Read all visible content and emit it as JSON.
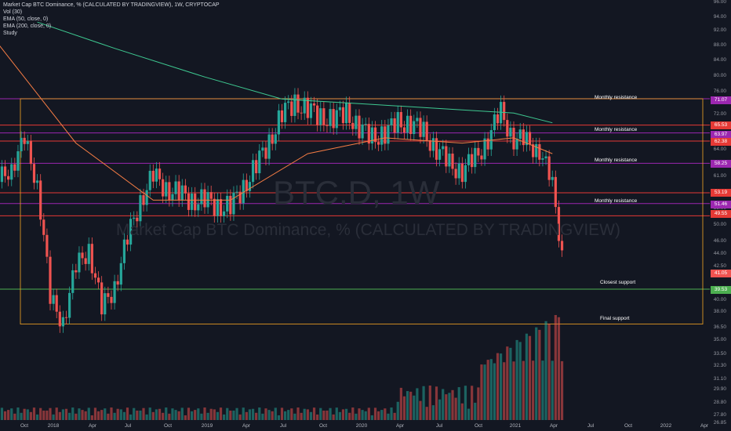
{
  "header": {
    "title": "Market Cap BTC Dominance, % (CALCULATED BY TRADINGVIEW), 1W, CRYPTOCAP",
    "studies": [
      "Vol (30)",
      "EMA (50, close, 0)",
      "EMA (200, close, 0)",
      "Study"
    ]
  },
  "watermark": {
    "symbol": "BTC.D, 1W",
    "name": "Market Cap BTC Dominance, % (CALCULATED BY TRADINGVIEW)"
  },
  "colors": {
    "background": "#131722",
    "up": "#26a69a",
    "down": "#ef5350",
    "ema50": "#f57c44",
    "ema200": "#3ec991",
    "resistance_purple": "#9c27b0",
    "resistance_red": "#e53935",
    "support_green": "#4caf50",
    "box": "#f5a623"
  },
  "zones": [
    {
      "label": "Monthly resistance",
      "level": 71.07,
      "color": "purple"
    },
    {
      "label": "",
      "level": 65.53,
      "color": "red"
    },
    {
      "label": "Monthly resistance",
      "level": 63.97,
      "color": "purple"
    },
    {
      "label": "",
      "level": 62.38,
      "color": "red"
    },
    {
      "label": "Monthly resistance",
      "level": 58.25,
      "color": "purple"
    },
    {
      "label": "",
      "level": 53.19,
      "color": "red"
    },
    {
      "label": "Monthly resistance",
      "level": 51.46,
      "color": "purple"
    },
    {
      "label": "",
      "level": 49.55,
      "color": "red"
    },
    {
      "label": "Closest support",
      "level": 39.53,
      "color": "green"
    },
    {
      "label": "Final support",
      "level": 35.5,
      "color": "box"
    }
  ],
  "price_tags": [
    {
      "text": "71.07",
      "color": "#9c27b0"
    },
    {
      "text": "65.53",
      "color": "#e53935"
    },
    {
      "text": "63.97",
      "color": "#9c27b0"
    },
    {
      "text": "62.38",
      "color": "#e53935"
    },
    {
      "text": "58.25",
      "color": "#9c27b0"
    },
    {
      "text": "53.19",
      "color": "#e53935"
    },
    {
      "text": "51.46",
      "color": "#9c27b0"
    },
    {
      "text": "49.55",
      "color": "#e53935"
    },
    {
      "text": "41.05",
      "color": "#ef5350"
    },
    {
      "text": "39.53",
      "color": "#4caf50"
    }
  ],
  "chart_data": {
    "type": "candlestick",
    "title": "Market Cap BTC Dominance, % (CALCULATED BY TRADINGVIEW), 1W, CRYPTOCAP",
    "x_tick_labels": [
      "Oct",
      "2018",
      "Apr",
      "Jul",
      "Oct",
      "2019",
      "Apr",
      "Jul",
      "Oct",
      "2020",
      "Apr",
      "Jul",
      "Oct",
      "2021",
      "Apr",
      "Jul",
      "Oct",
      "2022",
      "Apr"
    ],
    "y_tick_labels": [
      "96.00",
      "94.00",
      "92.00",
      "88.00",
      "84.00",
      "80.00",
      "76.00",
      "72.00",
      "68.00",
      "64.00",
      "61.00",
      "56.00",
      "53.00",
      "50.00",
      "46.00",
      "44.00",
      "42.50",
      "40.00",
      "38.00",
      "36.50",
      "35.00",
      "33.50",
      "32.30",
      "31.10",
      "29.90",
      "28.80",
      "27.80",
      "26.85"
    ],
    "ylim": [
      26.0,
      96.0
    ],
    "y_scale": "log",
    "grid": false,
    "series_close_approx": {
      "name": "BTC.D weekly close (approximate, read from chart)",
      "points": [
        [
          "2017-09",
          55
        ],
        [
          "2017-10",
          58
        ],
        [
          "2017-11",
          62
        ],
        [
          "2017-12",
          55
        ],
        [
          "2018-01",
          38
        ],
        [
          "2018-02",
          36
        ],
        [
          "2018-03",
          42
        ],
        [
          "2018-04",
          45
        ],
        [
          "2018-05",
          37
        ],
        [
          "2018-06",
          40
        ],
        [
          "2018-07",
          46
        ],
        [
          "2018-08",
          52
        ],
        [
          "2018-09",
          56
        ],
        [
          "2018-10",
          54
        ],
        [
          "2018-11",
          53
        ],
        [
          "2018-12",
          52
        ],
        [
          "2019-01",
          52
        ],
        [
          "2019-02",
          51
        ],
        [
          "2019-03",
          51
        ],
        [
          "2019-04",
          54
        ],
        [
          "2019-05",
          58
        ],
        [
          "2019-06",
          62
        ],
        [
          "2019-07",
          68
        ],
        [
          "2019-08",
          70
        ],
        [
          "2019-09",
          69
        ],
        [
          "2019-10",
          67
        ],
        [
          "2019-11",
          67
        ],
        [
          "2019-12",
          68
        ],
        [
          "2020-01",
          65
        ],
        [
          "2020-02",
          63
        ],
        [
          "2020-03",
          64
        ],
        [
          "2020-04",
          66
        ],
        [
          "2020-05",
          66
        ],
        [
          "2020-06",
          64
        ],
        [
          "2020-07",
          61
        ],
        [
          "2020-08",
          58
        ],
        [
          "2020-09",
          57
        ],
        [
          "2020-10",
          59
        ],
        [
          "2020-11",
          63
        ],
        [
          "2020-12",
          68
        ],
        [
          "2021-01",
          63
        ],
        [
          "2021-02",
          62
        ],
        [
          "2021-03",
          61
        ],
        [
          "2021-04",
          54
        ],
        [
          "2021-05",
          41.05
        ]
      ]
    },
    "ema50_approx": [
      [
        "2017-09",
        84
      ],
      [
        "2018-03",
        62
      ],
      [
        "2018-09",
        52
      ],
      [
        "2019-03",
        52
      ],
      [
        "2019-09",
        60
      ],
      [
        "2020-03",
        63
      ],
      [
        "2020-09",
        62
      ],
      [
        "2021-01",
        63
      ],
      [
        "2021-04",
        60
      ]
    ],
    "ema200_approx": [
      [
        "2017-12",
        90
      ],
      [
        "2018-06",
        83
      ],
      [
        "2019-01",
        76
      ],
      [
        "2019-07",
        71
      ],
      [
        "2020-01",
        70
      ],
      [
        "2020-07",
        69
      ],
      [
        "2021-01",
        68
      ],
      [
        "2021-04",
        66
      ]
    ],
    "volume_trend": "low through 2018-2020, rising sharply into 2021-04"
  }
}
